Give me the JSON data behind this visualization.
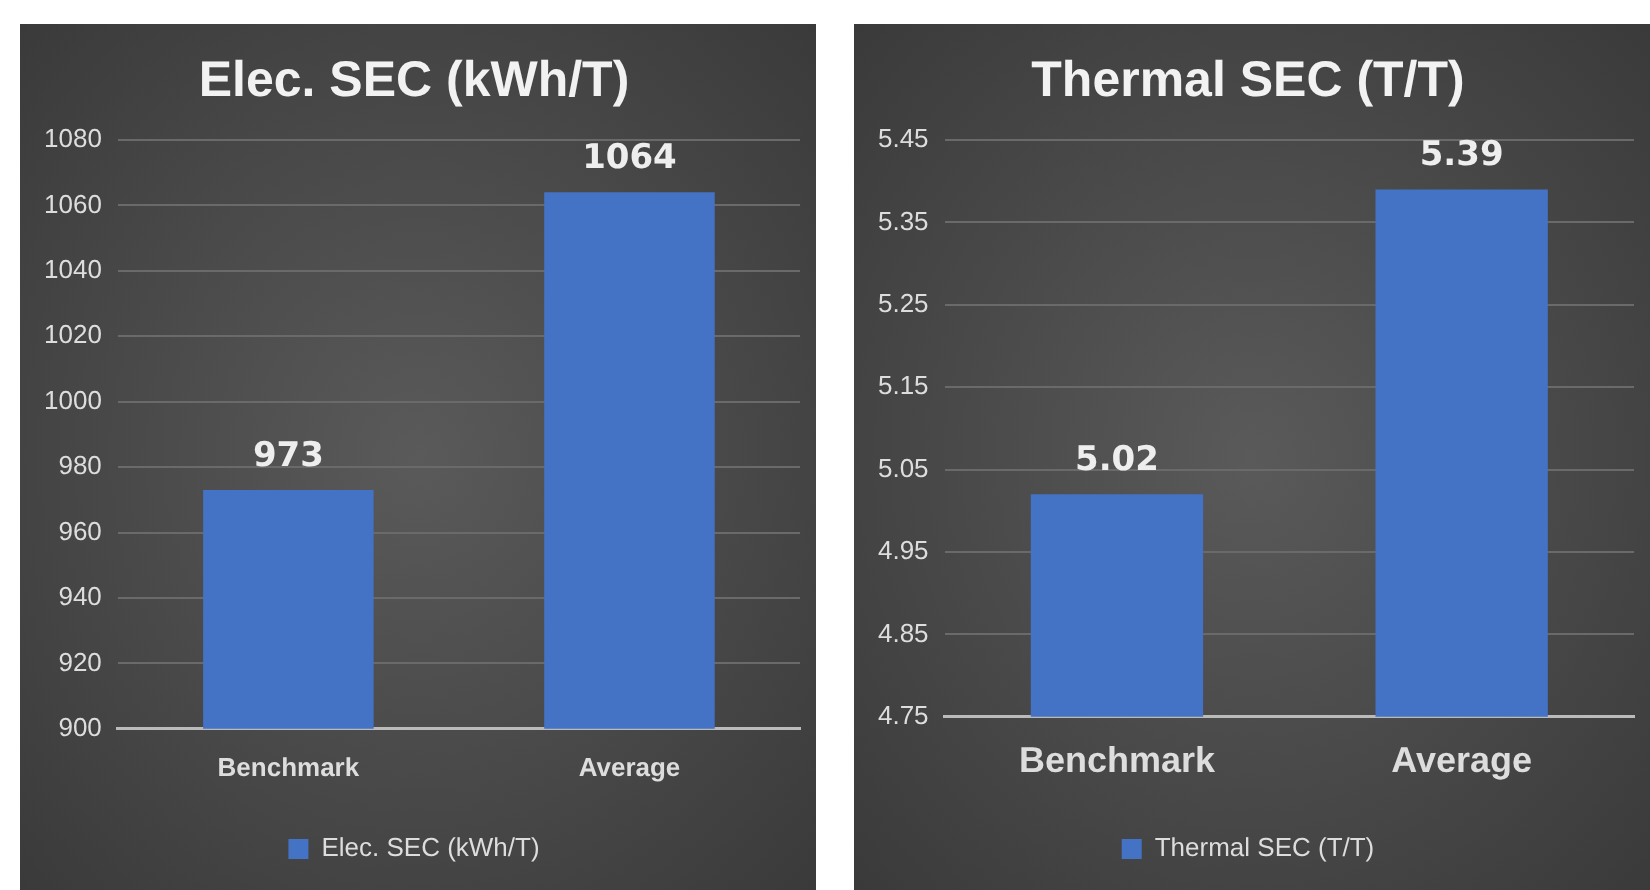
{
  "chart_data": [
    {
      "type": "bar",
      "title": "Elec. SEC (kWh/T)",
      "categories": [
        "Benchmark",
        "Average"
      ],
      "series": [
        {
          "name": "Elec. SEC (kWh/T)",
          "color": "#4472c4",
          "values": [
            973,
            1064
          ]
        }
      ],
      "ylim": [
        900,
        1080
      ],
      "yticks": [
        900,
        920,
        940,
        960,
        980,
        1000,
        1020,
        1040,
        1060,
        1080
      ],
      "grid": "y",
      "legend": "bottom",
      "data_labels": true
    },
    {
      "type": "bar",
      "title": "Thermal SEC (T/T)",
      "categories": [
        "Benchmark",
        "Average"
      ],
      "series": [
        {
          "name": "Thermal SEC (T/T)",
          "color": "#4472c4",
          "values": [
            5.02,
            5.39
          ]
        }
      ],
      "ylim": [
        4.75,
        5.45
      ],
      "yticks": [
        {
          "value": 4.75,
          "label": "4.75"
        },
        {
          "value": 4.85,
          "label": "4.85"
        },
        {
          "value": 4.95,
          "label": "4.95"
        },
        {
          "value": 5.05,
          "label": "5.05"
        },
        {
          "value": 5.15,
          "label": "5.15"
        },
        {
          "value": 5.25,
          "label": "5.25"
        },
        {
          "value": 5.35,
          "label": "5.35"
        },
        {
          "value": 5.45,
          "label": "5.45"
        }
      ],
      "grid": "y",
      "legend": "bottom",
      "data_labels": true
    }
  ]
}
